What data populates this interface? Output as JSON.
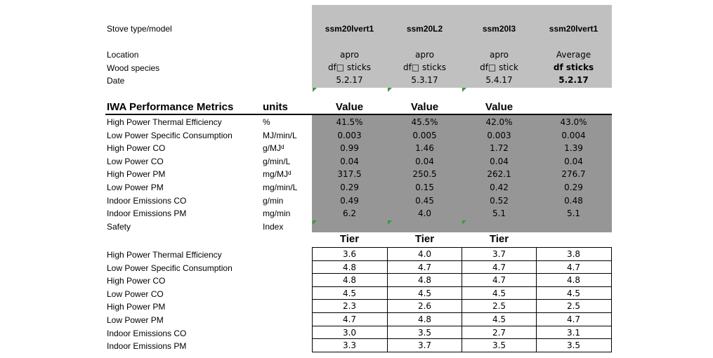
{
  "labels": {
    "stove_type": "Stove type/model",
    "location": "Location",
    "wood_species": "Wood species",
    "date": "Date",
    "metrics_header": "IWA Performance Metrics",
    "units_header": "units"
  },
  "columns": [
    {
      "model": "ssm20lvert1",
      "location": "apro",
      "wood": "df□ sticks",
      "date": "5.2.17",
      "value_header": "Value",
      "tier_header": "Tier"
    },
    {
      "model": "ssm20L2",
      "location": "apro",
      "wood": "df□ sticks",
      "date": "5.3.17",
      "value_header": "Value",
      "tier_header": "Tier"
    },
    {
      "model": "ssm20l3",
      "location": "apro",
      "wood": "df□ stick",
      "date": "5.4.17",
      "value_header": "Value",
      "tier_header": "Tier"
    },
    {
      "model": "ssm20lvert1",
      "location": "Average",
      "wood": "df sticks",
      "date": "5.2.17",
      "value_header": "",
      "tier_header": ""
    }
  ],
  "metrics": [
    {
      "name": "High Power Thermal Efficiency",
      "unit": "%",
      "values": [
        "41.5%",
        "45.5%",
        "42.0%",
        "43.0%"
      ]
    },
    {
      "name": "Low Power Specific Consumption",
      "unit": "MJ/min/L",
      "values": [
        "0.003",
        "0.005",
        "0.003",
        "0.004"
      ]
    },
    {
      "name": "High Power CO",
      "unit": "g/MJᵈ",
      "values": [
        "0.99",
        "1.46",
        "1.72",
        "1.39"
      ]
    },
    {
      "name": "Low Power CO",
      "unit": "g/min/L",
      "values": [
        "0.04",
        "0.04",
        "0.04",
        "0.04"
      ]
    },
    {
      "name": "High Power PM",
      "unit": "mg/MJᵈ",
      "values": [
        "317.5",
        "250.5",
        "262.1",
        "276.7"
      ]
    },
    {
      "name": "Low Power PM",
      "unit": "mg/min/L",
      "values": [
        "0.29",
        "0.15",
        "0.42",
        "0.29"
      ]
    },
    {
      "name": "Indoor Emissions CO",
      "unit": "g/min",
      "values": [
        "0.49",
        "0.45",
        "0.52",
        "0.48"
      ]
    },
    {
      "name": "Indoor Emissions PM",
      "unit": "mg/min",
      "values": [
        "6.2",
        "4.0",
        "5.1",
        "5.1"
      ]
    },
    {
      "name": "Safety",
      "unit": "Index",
      "values": [
        "",
        "",
        "",
        ""
      ]
    }
  ],
  "tiers": [
    {
      "name": "High Power Thermal Efficiency",
      "values": [
        "3.6",
        "4.0",
        "3.7",
        "3.8"
      ]
    },
    {
      "name": "Low Power Specific Consumption",
      "values": [
        "4.8",
        "4.7",
        "4.7",
        "4.7"
      ]
    },
    {
      "name": "High Power CO",
      "values": [
        "4.8",
        "4.8",
        "4.7",
        "4.8"
      ]
    },
    {
      "name": "Low Power CO",
      "values": [
        "4.5",
        "4.5",
        "4.5",
        "4.5"
      ]
    },
    {
      "name": "High Power PM",
      "values": [
        "2.3",
        "2.6",
        "2.5",
        "2.5"
      ]
    },
    {
      "name": "Low Power PM",
      "values": [
        "4.7",
        "4.8",
        "4.5",
        "4.7"
      ]
    },
    {
      "name": "Indoor Emissions CO",
      "values": [
        "3.0",
        "3.5",
        "2.7",
        "3.1"
      ]
    },
    {
      "name": "Indoor Emissions PM",
      "values": [
        "3.3",
        "3.7",
        "3.5",
        "3.5"
      ]
    }
  ],
  "colors": {
    "header_block": "#c0c0c0",
    "value_block": "#969696",
    "comment_marker": "#3a9a3a"
  }
}
